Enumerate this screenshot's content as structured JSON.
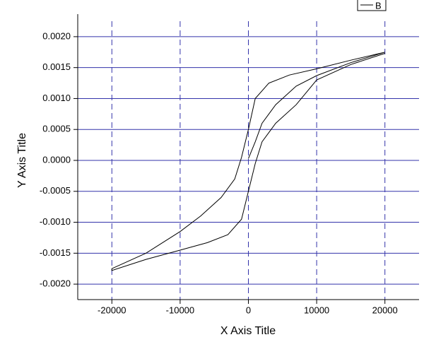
{
  "chart_data": {
    "type": "line",
    "x_label": "X Axis Title",
    "y_label": "Y Axis Title",
    "series": [
      {
        "name": "B",
        "color": "#000000",
        "x": [
          0,
          1000,
          2000,
          4000,
          7000,
          10000,
          15000,
          20000,
          15000,
          10000,
          6000,
          3000,
          1000,
          0,
          -1000,
          -2000,
          -4000,
          -7000,
          -10000,
          -15000,
          -20000,
          -20000,
          -15000,
          -10000,
          -6000,
          -3000,
          -1000,
          0,
          1000,
          2000,
          4000,
          7000,
          10000,
          15000,
          20000
        ],
        "values": [
          3e-05,
          0.0003,
          0.0006,
          0.0009,
          0.0012,
          0.00137,
          0.00158,
          0.00175,
          0.00162,
          0.00148,
          0.00138,
          0.00125,
          0.001,
          0.0005,
          5e-05,
          -0.0003,
          -0.0006,
          -0.0009,
          -0.00115,
          -0.0015,
          -0.00175,
          -0.00178,
          -0.0016,
          -0.00145,
          -0.00133,
          -0.0012,
          -0.00095,
          -0.0005,
          -5e-05,
          0.0003,
          0.0006,
          0.0009,
          0.0013,
          0.00155,
          0.00173
        ]
      }
    ],
    "xlim": [
      -25000,
      25000
    ],
    "xticks": [
      -20000,
      -10000,
      0,
      10000,
      20000
    ],
    "ylim": [
      -0.00225,
      0.00225
    ],
    "yticks": [
      {
        "value": -0.002,
        "label": "-0.0020"
      },
      {
        "value": -0.0015,
        "label": "-0.0015"
      },
      {
        "value": -0.001,
        "label": "-0.0010"
      },
      {
        "value": -0.0005,
        "label": "-0.0005"
      },
      {
        "value": 0,
        "label": "0.0000"
      },
      {
        "value": 0.0005,
        "label": "0.0005"
      },
      {
        "value": 0.001,
        "label": "0.0010"
      },
      {
        "value": 0.0015,
        "label": "0.0015"
      },
      {
        "value": 0.002,
        "label": "0.0020"
      }
    ],
    "grid": true,
    "grid_color": "#3333aa",
    "legend": "top-right"
  }
}
